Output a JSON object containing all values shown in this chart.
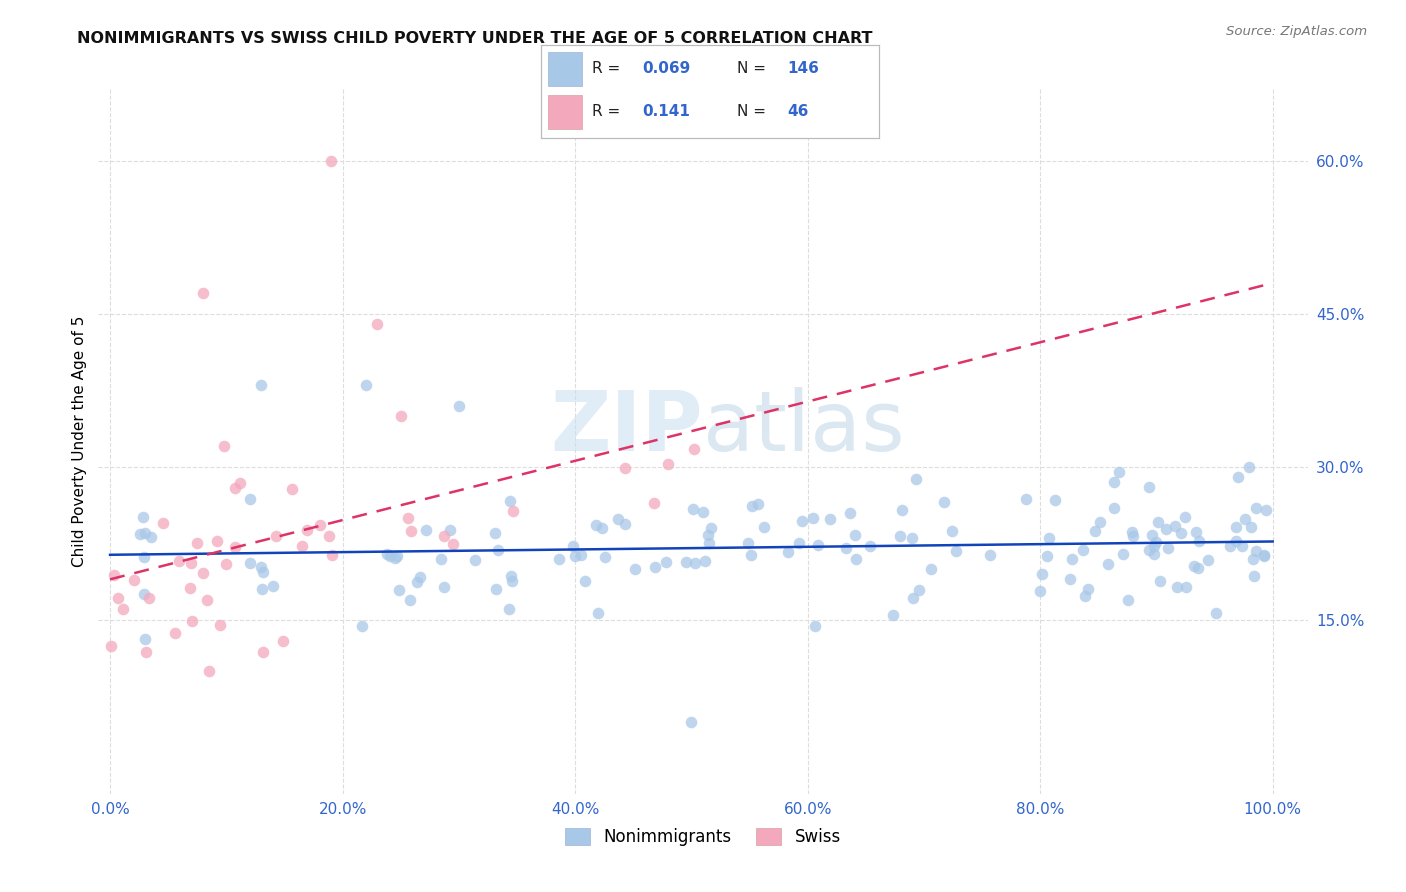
{
  "title": "NONIMMIGRANTS VS SWISS CHILD POVERTY UNDER THE AGE OF 5 CORRELATION CHART",
  "source": "Source: ZipAtlas.com",
  "ylabel": "Child Poverty Under the Age of 5",
  "yticks": [
    "15.0%",
    "30.0%",
    "45.0%",
    "60.0%"
  ],
  "ytick_vals": [
    0.15,
    0.3,
    0.45,
    0.6
  ],
  "xtick_vals": [
    0.0,
    0.2,
    0.4,
    0.6,
    0.8,
    1.0
  ],
  "xlim": [
    -0.01,
    1.03
  ],
  "ylim": [
    -0.02,
    0.67
  ],
  "watermark": "ZIPatlas",
  "blue_color": "#a8c8e8",
  "pink_color": "#f4a8bc",
  "trendline_blue": "#1144bb",
  "trendline_pink": "#dd3366",
  "title_color": "#111111",
  "source_color": "#777777",
  "axis_label_color": "#3366cc",
  "grid_color": "#dddddd",
  "blue_intercept": 0.205,
  "blue_slope": 0.022,
  "pink_intercept": 0.185,
  "pink_slope": 0.18,
  "scatter_size": 70,
  "scatter_alpha": 0.75,
  "scatter_linewidth": 0.0
}
